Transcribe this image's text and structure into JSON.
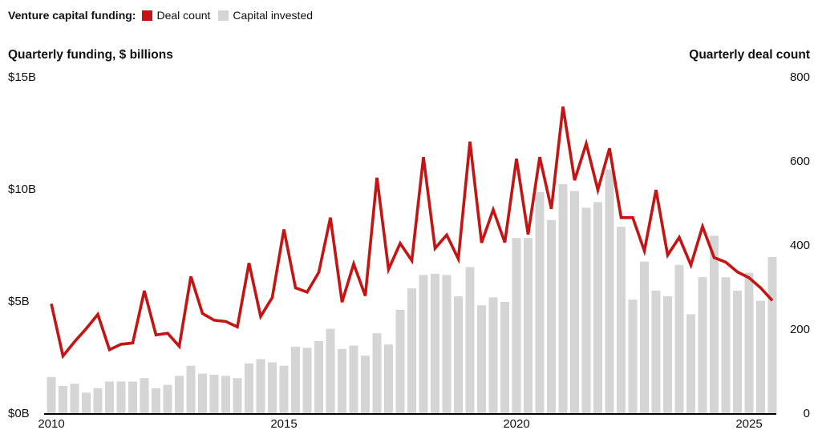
{
  "legend": {
    "title": "Venture capital funding:",
    "items": [
      {
        "label": "Deal count",
        "color": "#c41414"
      },
      {
        "label": "Capital invested",
        "color": "#d5d5d5"
      }
    ]
  },
  "left_axis": {
    "title": "Quarterly funding, $ billions",
    "ticks": [
      {
        "label": "$15B",
        "value": 15
      },
      {
        "label": "$10B",
        "value": 10
      },
      {
        "label": "$5B",
        "value": 5
      },
      {
        "label": "$0B",
        "value": 0
      }
    ]
  },
  "right_axis": {
    "title": "Quarterly deal count",
    "ticks": [
      {
        "label": "800",
        "value": 800
      },
      {
        "label": "600",
        "value": 600
      },
      {
        "label": "400",
        "value": 400
      },
      {
        "label": "200",
        "value": 200
      },
      {
        "label": "0",
        "value": 0
      }
    ]
  },
  "x_axis": {
    "ticks": [
      {
        "label": "2010",
        "index": 0
      },
      {
        "label": "2015",
        "index": 20
      },
      {
        "label": "2020",
        "index": 40
      },
      {
        "label": "2025",
        "index": 60
      }
    ]
  },
  "chart_data": {
    "type": "combo",
    "bar_series": {
      "name": "Capital invested",
      "unit": "$ billions",
      "axis": "left",
      "color": "#d5d5d5"
    },
    "line_series": {
      "name": "Deal count",
      "axis": "right",
      "color": "#c41414"
    },
    "left_ylim": [
      0,
      15
    ],
    "right_ylim": [
      0,
      800
    ],
    "grid": false,
    "legend_position": "top-left",
    "categories": [
      "2010 Q1",
      "2010 Q2",
      "2010 Q3",
      "2010 Q4",
      "2011 Q1",
      "2011 Q2",
      "2011 Q3",
      "2011 Q4",
      "2012 Q1",
      "2012 Q2",
      "2012 Q3",
      "2012 Q4",
      "2013 Q1",
      "2013 Q2",
      "2013 Q3",
      "2013 Q4",
      "2014 Q1",
      "2014 Q2",
      "2014 Q3",
      "2014 Q4",
      "2015 Q1",
      "2015 Q2",
      "2015 Q3",
      "2015 Q4",
      "2016 Q1",
      "2016 Q2",
      "2016 Q3",
      "2016 Q4",
      "2017 Q1",
      "2017 Q2",
      "2017 Q3",
      "2017 Q4",
      "2018 Q1",
      "2018 Q2",
      "2018 Q3",
      "2018 Q4",
      "2019 Q1",
      "2019 Q2",
      "2019 Q3",
      "2019 Q4",
      "2020 Q1",
      "2020 Q2",
      "2020 Q3",
      "2020 Q4",
      "2021 Q1",
      "2021 Q2",
      "2021 Q3",
      "2021 Q4",
      "2022 Q1",
      "2022 Q2",
      "2022 Q3",
      "2022 Q4",
      "2023 Q1",
      "2023 Q2",
      "2023 Q3",
      "2023 Q4",
      "2024 Q1",
      "2024 Q2",
      "2024 Q3",
      "2024 Q4",
      "2025 Q1",
      "2025 Q2",
      "2025 Q3"
    ],
    "capital_invested_billions": [
      1.65,
      1.25,
      1.35,
      0.95,
      1.15,
      1.45,
      1.45,
      1.45,
      1.6,
      1.15,
      1.3,
      1.7,
      2.15,
      1.8,
      1.75,
      1.7,
      1.6,
      2.25,
      2.45,
      2.3,
      2.15,
      3.0,
      2.95,
      3.25,
      3.8,
      2.9,
      3.05,
      2.6,
      3.6,
      3.1,
      4.65,
      5.6,
      6.2,
      6.25,
      6.2,
      5.25,
      6.55,
      4.85,
      5.2,
      5.0,
      7.85,
      7.85,
      9.9,
      8.65,
      10.25,
      9.95,
      9.2,
      9.45,
      10.9,
      8.35,
      5.1,
      6.8,
      5.5,
      5.25,
      6.65,
      4.45,
      6.1,
      7.95,
      6.1,
      5.5,
      6.3,
      5.05,
      7.0
    ],
    "deal_count": [
      262,
      138,
      172,
      203,
      237,
      153,
      166,
      169,
      293,
      188,
      192,
      161,
      327,
      239,
      223,
      220,
      207,
      359,
      232,
      277,
      439,
      300,
      290,
      337,
      467,
      266,
      357,
      281,
      562,
      344,
      406,
      365,
      611,
      394,
      426,
      369,
      648,
      407,
      486,
      408,
      607,
      427,
      611,
      488,
      731,
      556,
      643,
      533,
      632,
      467,
      467,
      388,
      533,
      378,
      420,
      354,
      446,
      372,
      361,
      338,
      324,
      300,
      270
    ]
  }
}
